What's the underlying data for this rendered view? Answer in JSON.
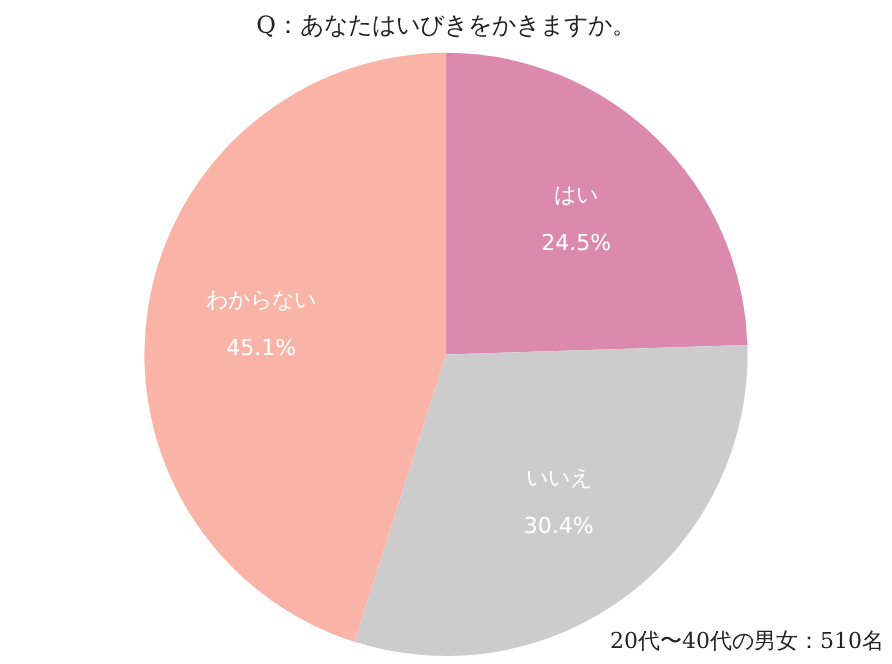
{
  "chart_data": {
    "type": "pie",
    "title": "Q：あなたはいびきをかきますか。",
    "categories": [
      "はい",
      "いいえ",
      "わからない"
    ],
    "values": [
      24.5,
      30.4,
      45.1
    ],
    "colors": [
      "#db8aae",
      "#cccccc",
      "#f9b4a7"
    ],
    "value_labels": [
      "24.5%",
      "30.4%",
      "45.1%"
    ],
    "legend": false,
    "annotations": [
      "20代〜40代の男女：510名"
    ]
  }
}
